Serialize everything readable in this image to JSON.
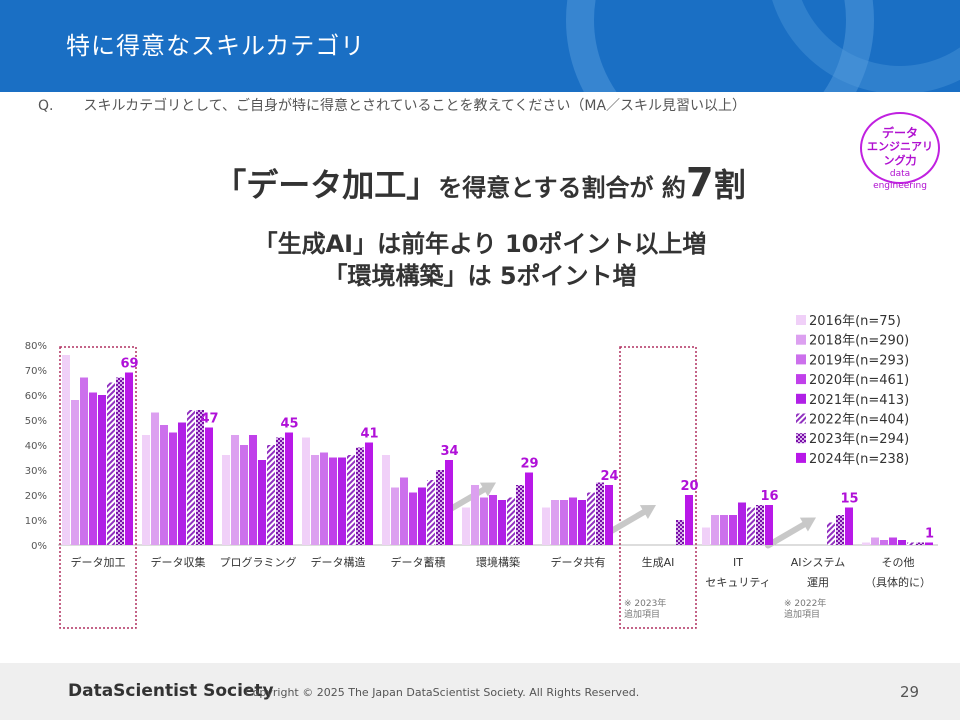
{
  "header": {
    "title": "特に得意なスキルカテゴリ"
  },
  "question": {
    "mark": "Q.",
    "text": "スキルカテゴリとして、ご自身が特に得意とされていることを教えてください（MA／スキル見習い以上）"
  },
  "badge": {
    "line1": "データ",
    "line2": "エンジニアリング力",
    "line3": "data engineering"
  },
  "headline": {
    "part1": "「データ加工」",
    "part2": "を得意とする割合が",
    "part3": " 約",
    "part4": "7",
    "part5": "割",
    "sub1": "「生成AI」は前年より 10ポイント以上増",
    "sub2": "「環境構築」は 5ポイント増"
  },
  "footer": {
    "logo": "DataScientist Society",
    "copyright": "Copyright © 2025  The Japan DataScientist Society. All Rights Reserved.",
    "page": "29"
  },
  "chart_data": {
    "type": "bar",
    "ylim": [
      0,
      80
    ],
    "yticks": [
      "0%",
      "10%",
      "20%",
      "30%",
      "40%",
      "50%",
      "60%",
      "70%",
      "80%"
    ],
    "categories": [
      {
        "lines": [
          "データ加工"
        ]
      },
      {
        "lines": [
          "データ収集"
        ]
      },
      {
        "lines": [
          "プログラミング"
        ]
      },
      {
        "lines": [
          "データ構造"
        ]
      },
      {
        "lines": [
          "データ蓄積"
        ]
      },
      {
        "lines": [
          "環境構築"
        ]
      },
      {
        "lines": [
          "データ共有"
        ]
      },
      {
        "lines": [
          "生成AI"
        ],
        "note": [
          "※ 2023年",
          "追加項目"
        ]
      },
      {
        "lines": [
          "IT",
          "セキュリティ"
        ]
      },
      {
        "lines": [
          "AIシステム",
          "運用"
        ],
        "note": [
          "※ 2022年",
          "追加項目"
        ]
      },
      {
        "lines": [
          "その他",
          "（具体的に）"
        ]
      }
    ],
    "series": [
      {
        "name": "2016年(n=75)",
        "color": "#f0d0f8",
        "pattern": "solid",
        "values": [
          76,
          44,
          36,
          43,
          36,
          15,
          15,
          null,
          7,
          null,
          1
        ]
      },
      {
        "name": "2018年(n=290)",
        "color": "#dca0f0",
        "pattern": "solid",
        "values": [
          58,
          53,
          44,
          36,
          23,
          24,
          18,
          null,
          12,
          null,
          3
        ]
      },
      {
        "name": "2019年(n=293)",
        "color": "#cc70ec",
        "pattern": "solid",
        "values": [
          67,
          48,
          40,
          37,
          27,
          19,
          18,
          null,
          12,
          null,
          2
        ]
      },
      {
        "name": "2020年(n=461)",
        "color": "#c040ea",
        "pattern": "solid",
        "values": [
          61,
          45,
          44,
          35,
          21,
          20,
          19,
          null,
          12,
          null,
          3
        ]
      },
      {
        "name": "2021年(n=413)",
        "color": "#b020e6",
        "pattern": "solid",
        "values": [
          60,
          49,
          34,
          35,
          23,
          18,
          18,
          null,
          17,
          null,
          2
        ]
      },
      {
        "name": "2022年(n=404)",
        "color": "#9030c0",
        "pattern": "hatch",
        "values": [
          65,
          54,
          40,
          36,
          26,
          19,
          21,
          null,
          15,
          9,
          1
        ]
      },
      {
        "name": "2023年(n=294)",
        "color": "#9020c0",
        "pattern": "check",
        "values": [
          67,
          54,
          43,
          39,
          30,
          24,
          25,
          10,
          16,
          12,
          1
        ]
      },
      {
        "name": "2024年(n=238)",
        "color": "#b818e8",
        "pattern": "solid",
        "values": [
          69,
          47,
          45,
          41,
          34,
          29,
          24,
          20,
          16,
          15,
          1
        ]
      }
    ],
    "data_labels": [
      "69",
      "47",
      "45",
      "41",
      "34",
      "29",
      "24",
      "20",
      "16",
      "15",
      "1"
    ],
    "highlight_categories": [
      0,
      7
    ],
    "arrow_categories": [
      5,
      7,
      9
    ]
  }
}
